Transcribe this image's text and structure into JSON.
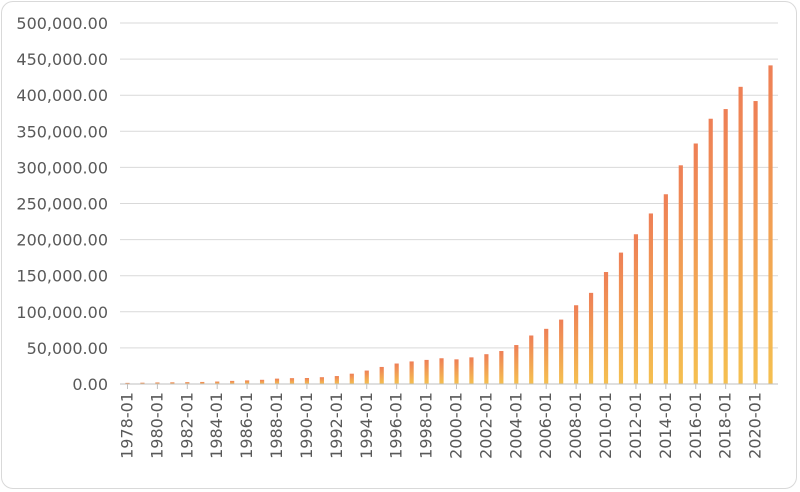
{
  "chart_data": {
    "type": "bar",
    "title": "",
    "xlabel": "",
    "ylabel": "",
    "ylim": [
      0,
      500000
    ],
    "y_ticks": [
      "0.00",
      "50,000.00",
      "100,000.00",
      "150,000.00",
      "200,000.00",
      "250,000.00",
      "300,000.00",
      "350,000.00",
      "400,000.00",
      "450,000.00",
      "500,000.00"
    ],
    "x_tick_labels": [
      "1978-01",
      "1980-01",
      "1982-01",
      "1984-01",
      "1986-01",
      "1988-01",
      "1990-01",
      "1992-01",
      "1994-01",
      "1996-01",
      "1998-01",
      "2000-01",
      "2002-01",
      "2004-01",
      "2006-01",
      "2008-01",
      "2010-01",
      "2012-01",
      "2014-01",
      "2016-01",
      "2018-01",
      "2020-01"
    ],
    "categories": [
      "1978-01",
      "1979-01",
      "1980-01",
      "1981-01",
      "1982-01",
      "1983-01",
      "1984-01",
      "1985-01",
      "1986-01",
      "1987-01",
      "1988-01",
      "1989-01",
      "1990-01",
      "1991-01",
      "1992-01",
      "1993-01",
      "1994-01",
      "1995-01",
      "1996-01",
      "1997-01",
      "1998-01",
      "1999-01",
      "2000-01",
      "2001-01",
      "2002-01",
      "2003-01",
      "2004-01",
      "2005-01",
      "2006-01",
      "2007-01",
      "2008-01",
      "2009-01",
      "2010-01",
      "2011-01",
      "2012-01",
      "2013-01",
      "2014-01",
      "2015-01",
      "2016-01",
      "2017-01",
      "2018-01",
      "2019-01",
      "2020-01",
      "2021-01"
    ],
    "values": [
      1559,
      1800,
      2140,
      2350,
      2570,
      2849,
      3376,
      4305,
      5000,
      5820,
      7440,
      8101,
      8300,
      9415,
      10993,
      14270,
      18623,
      23614,
      28360,
      31252,
      33378,
      35648,
      34153,
      36898,
      41280,
      45670,
      53950,
      67177,
      76410,
      89210,
      109070,
      126230,
      155100,
      182000,
      207400,
      236200,
      262800,
      302900,
      333100,
      367400,
      380800,
      411600,
      391900,
      441300
    ],
    "grid": true,
    "legend": "none",
    "colors": {
      "bar_top": "#ee7f56",
      "bar_bottom": "#f5c050"
    }
  }
}
